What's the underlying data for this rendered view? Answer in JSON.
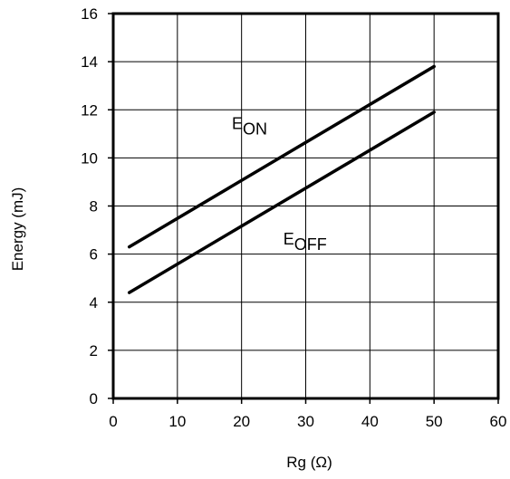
{
  "chart_data": {
    "type": "line",
    "xlabel": "Rg (Ω)",
    "ylabel": "Energy (mJ)",
    "xlim": [
      0,
      60
    ],
    "ylim": [
      0,
      16
    ],
    "x_ticks": [
      0,
      10,
      20,
      30,
      40,
      50,
      60
    ],
    "y_ticks": [
      0,
      2,
      4,
      6,
      8,
      10,
      12,
      14,
      16
    ],
    "grid": true,
    "series": [
      {
        "name": "EON",
        "label_main": "E",
        "label_sub": "ON",
        "x": [
          2.5,
          50
        ],
        "y": [
          6.3,
          13.8
        ]
      },
      {
        "name": "EOFF",
        "label_main": "E",
        "label_sub": "OFF",
        "x": [
          2.5,
          50
        ],
        "y": [
          4.4,
          11.9
        ]
      }
    ],
    "annotations": [
      {
        "series": "EON",
        "x": 18.5,
        "y": 11.2
      },
      {
        "series": "EOFF",
        "x": 26.5,
        "y": 6.4
      }
    ]
  },
  "colors": {
    "line": "#000000",
    "grid": "#000000",
    "background": "#ffffff"
  }
}
